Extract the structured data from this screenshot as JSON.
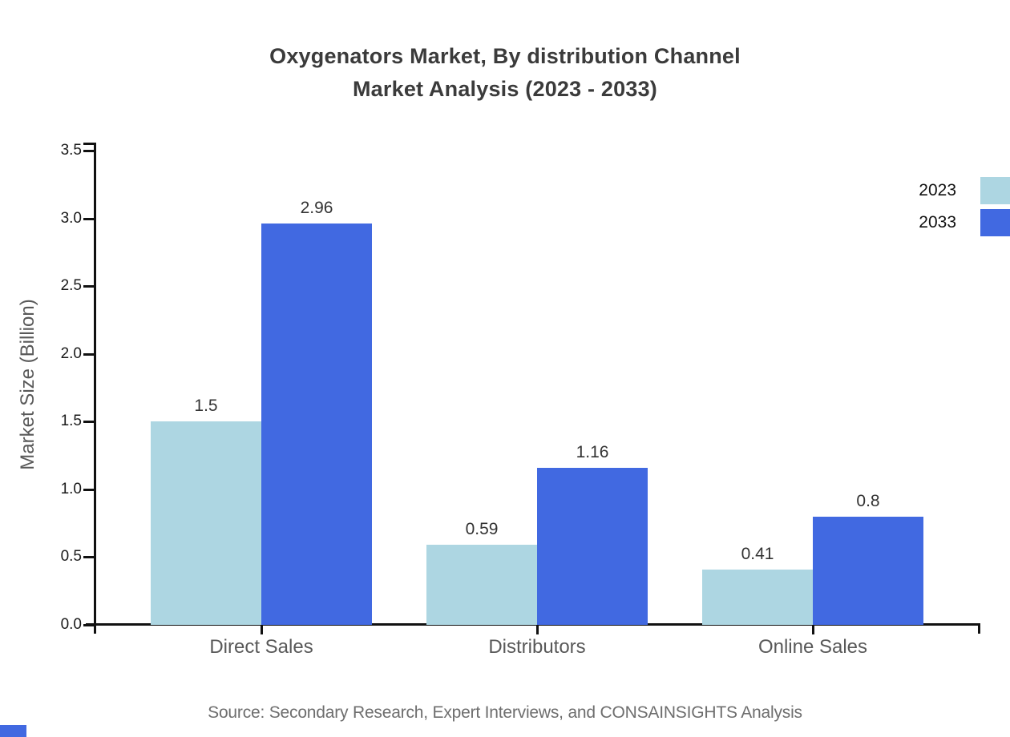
{
  "title": {
    "line1": "Oxygenators Market, By distribution Channel",
    "line2": "Market Analysis (2023 - 2033)"
  },
  "source_note": "Source: Secondary Research, Expert Interviews, and CONSAINSIGHTS Analysis",
  "colors": {
    "series_2023": "#ADD6E2",
    "series_2033": "#4169E1",
    "axis": "#111111",
    "title_text": "#3b3b3b",
    "category_text": "#595959",
    "source_text": "#6e6e6e"
  },
  "chart_data": {
    "type": "bar",
    "title": "Oxygenators Market, By distribution Channel Market Analysis (2023 - 2033)",
    "categories": [
      "Direct Sales",
      "Distributors",
      "Online Sales"
    ],
    "series": [
      {
        "name": "2023",
        "color": "#ADD6E2",
        "values": [
          1.5,
          0.59,
          0.41
        ],
        "labels": [
          "1.5",
          "0.59",
          "0.41"
        ]
      },
      {
        "name": "2033",
        "color": "#4169E1",
        "values": [
          2.96,
          1.16,
          0.8
        ],
        "labels": [
          "2.96",
          "1.16",
          "0.8"
        ]
      }
    ],
    "xlabel": "",
    "ylabel": "Market Size (Billion)",
    "ylim": [
      0.0,
      3.5
    ],
    "ytick_step": 0.5,
    "yticks": [
      "0.0",
      "0.5",
      "1.0",
      "1.5",
      "2.0",
      "2.5",
      "3.0",
      "3.5"
    ],
    "grid": false,
    "legend_position": "top-right",
    "bar_value_labels_shown": true
  }
}
